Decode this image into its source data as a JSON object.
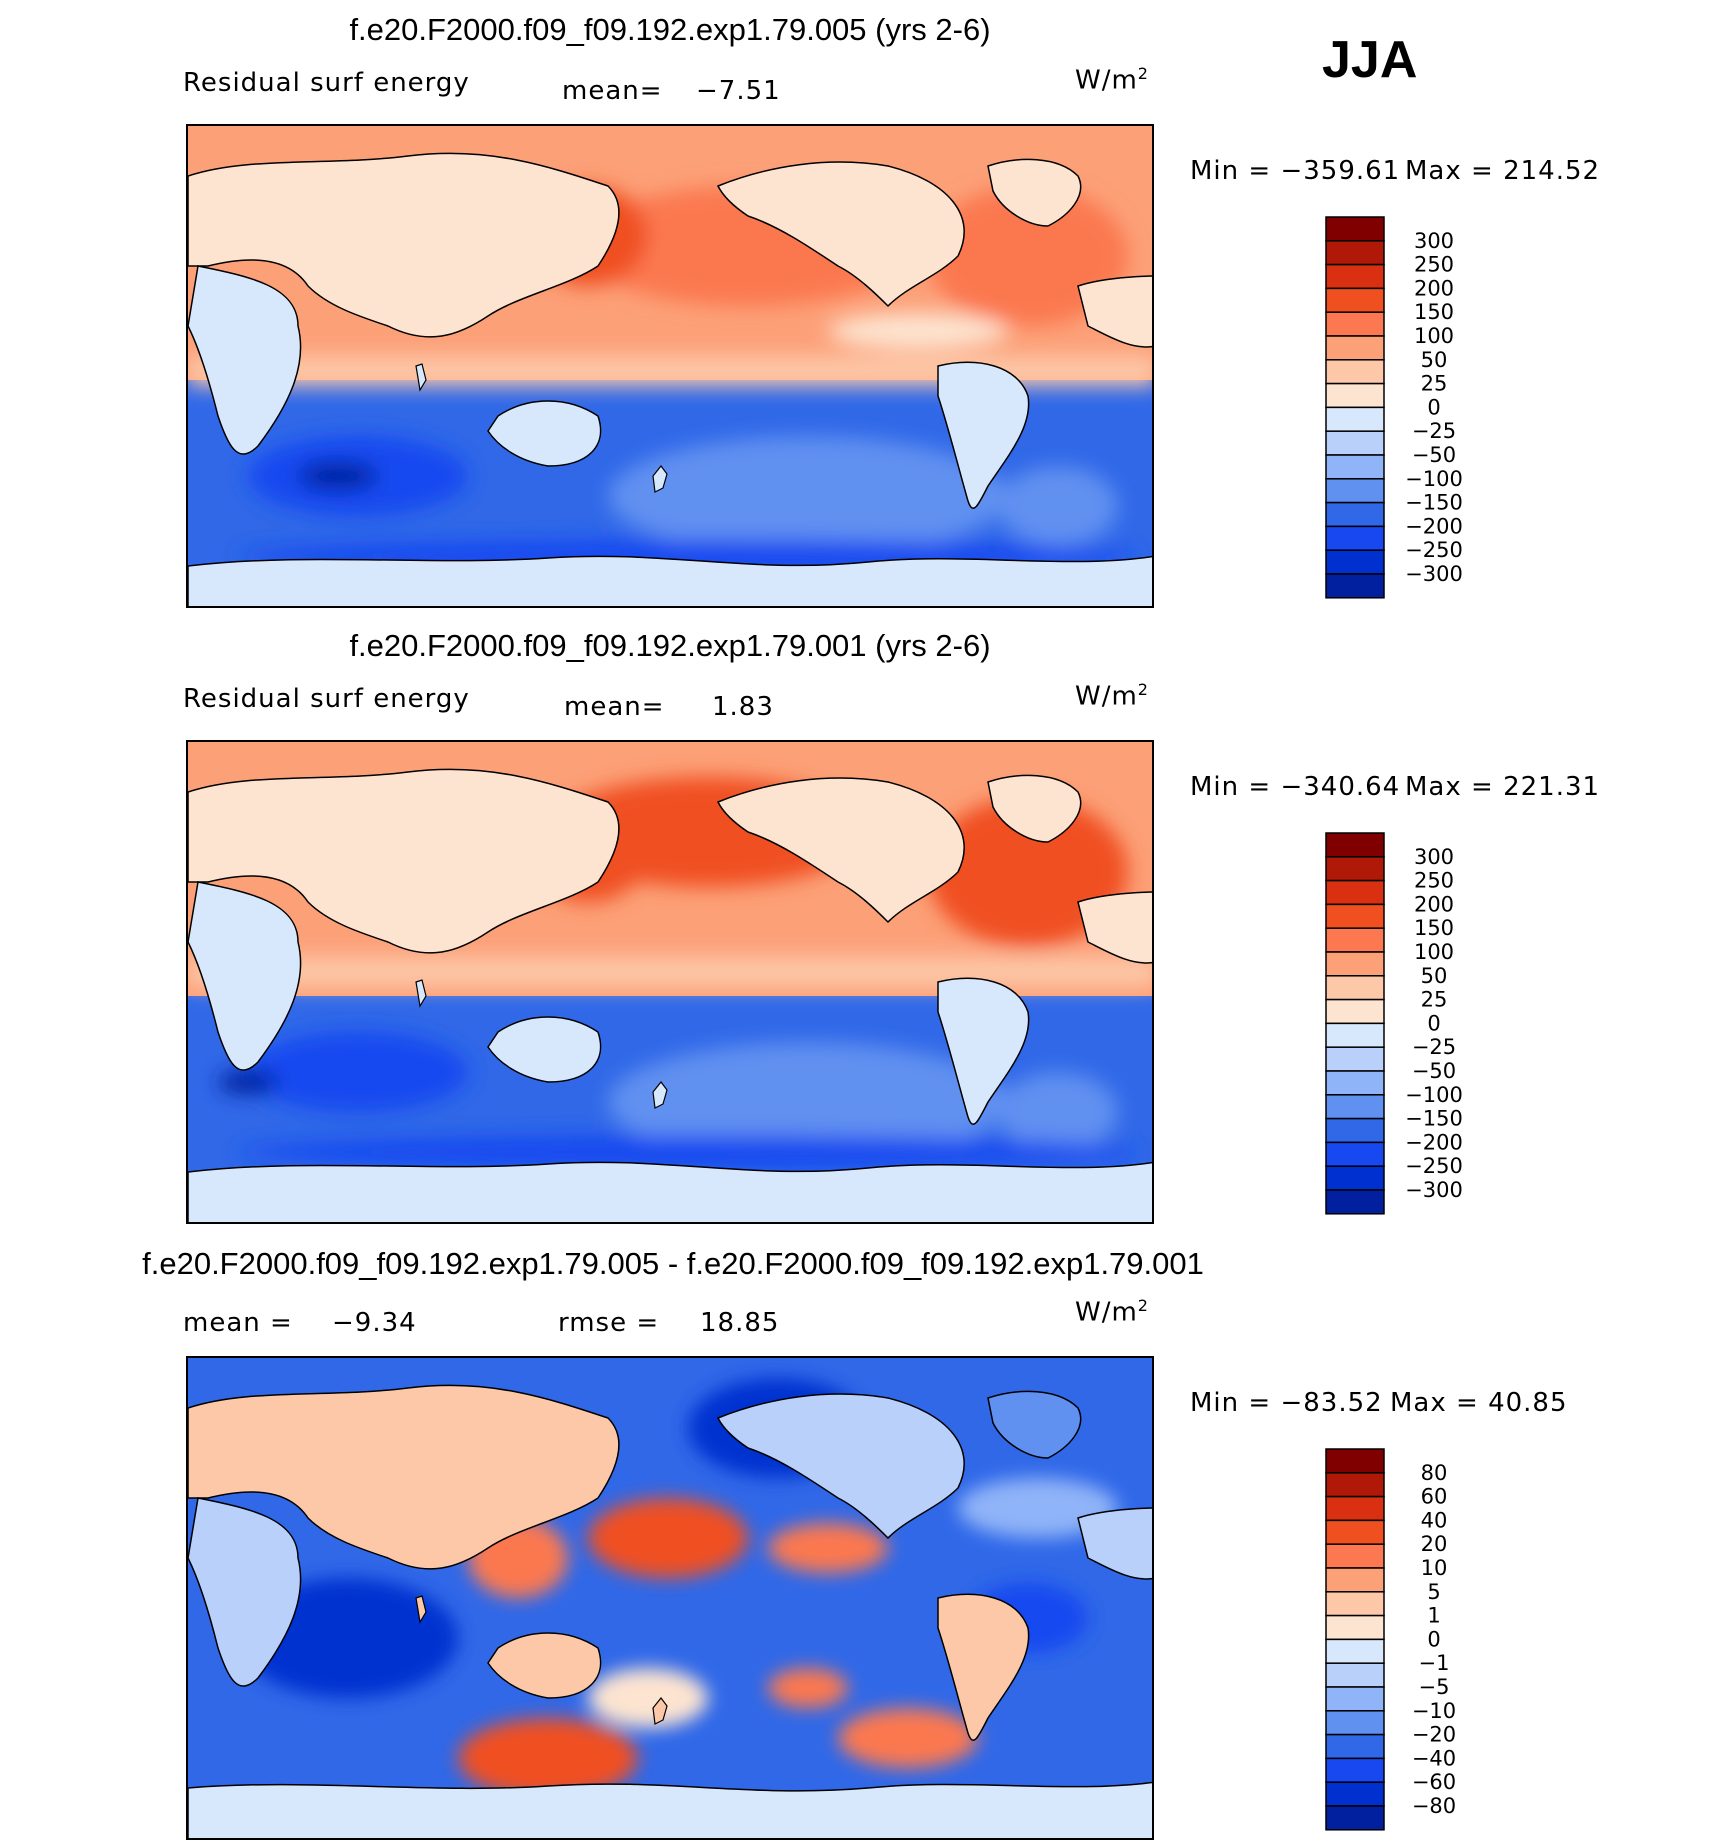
{
  "season_label": "JJA",
  "units_label": "W/m",
  "units_exp": "2",
  "palette": {
    "main": [
      "#000080",
      "#0020a0",
      "#0030d0",
      "#1848f0",
      "#3068e8",
      "#6090f0",
      "#90b4f8",
      "#b8d0fa",
      "#d8e8fc",
      "#fde4d0",
      "#fdc8a8",
      "#fca078",
      "#fb7850",
      "#f05020",
      "#d83010",
      "#b01808",
      "#800000"
    ],
    "diff": [
      "#000080",
      "#0020a0",
      "#0030d0",
      "#1848f0",
      "#3068e8",
      "#6090f0",
      "#90b4f8",
      "#b8d0fa",
      "#d8e8fc",
      "#fde4d0",
      "#fdc8a8",
      "#fca078",
      "#fb7850",
      "#f05020",
      "#d83010",
      "#b01808",
      "#800000"
    ]
  },
  "chart_data": [
    {
      "type": "heatmap",
      "title": "f.e20.F2000.f09_f09.192.exp1.79.005 (yrs 2-6)",
      "left_label": "Residual surf energy",
      "mean_label": "mean=",
      "mean_value": "−7.51",
      "min_label": "Min = −359.61",
      "max_label": "Max = 214.52",
      "colorbar_levels": [
        "300",
        "250",
        "200",
        "150",
        "100",
        "50",
        "25",
        "0",
        "−25",
        "−50",
        "−100",
        "−150",
        "−200",
        "−250",
        "−300"
      ]
    },
    {
      "type": "heatmap",
      "title": "f.e20.F2000.f09_f09.192.exp1.79.001 (yrs 2-6)",
      "left_label": "Residual surf energy",
      "mean_label": "mean=",
      "mean_value": "1.83",
      "min_label": "Min = −340.64",
      "max_label": "Max = 221.31",
      "colorbar_levels": [
        "300",
        "250",
        "200",
        "150",
        "100",
        "50",
        "25",
        "0",
        "−25",
        "−50",
        "−100",
        "−150",
        "−200",
        "−250",
        "−300"
      ]
    },
    {
      "type": "heatmap",
      "title": "f.e20.F2000.f09_f09.192.exp1.79.005 - f.e20.F2000.f09_f09.192.exp1.79.001",
      "mean_label": "mean =",
      "mean_value": "−9.34",
      "rmse_label": "rmse =",
      "rmse_value": "18.85",
      "min_label": "Min = −83.52",
      "max_label": "Max = 40.85",
      "colorbar_levels": [
        "80",
        "60",
        "40",
        "20",
        "10",
        "5",
        "1",
        "0",
        "−1",
        "−5",
        "−10",
        "−20",
        "−40",
        "−60",
        "−80"
      ]
    }
  ]
}
